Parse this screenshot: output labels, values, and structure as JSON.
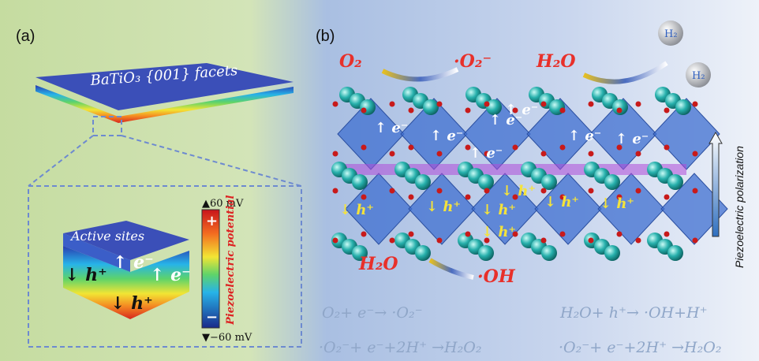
{
  "panel_a": {
    "label": "(a)",
    "slab_label": "BaTiO₃ {001} facets",
    "block_label": "Active sites",
    "charges": [
      "↓ h⁺",
      "↑ e⁻",
      "↑ e⁻",
      "↓ h⁺"
    ],
    "colorbar": {
      "top": "▲60 mV",
      "bottom": "▼−60 mV",
      "plus": "+",
      "minus": "−",
      "title": "Piezoelectric potential"
    }
  },
  "panel_b": {
    "label": "(b)",
    "oxygen": "O₂",
    "superoxide": "·O₂⁻",
    "water_top": "H₂O",
    "hydrogen": [
      "H₂",
      "H₂"
    ],
    "electrons": [
      "↑ e⁻",
      "↑ e⁻",
      "↑ e⁻",
      "↑ e⁻",
      "↑ e⁻",
      "↑ e⁻",
      "↑ e⁻"
    ],
    "holes": [
      "↓ h⁺",
      "↓ h⁺",
      "↓ h⁺",
      "↓ h⁺",
      "↓ h⁺",
      "↓ h⁺",
      "↓ h⁺"
    ],
    "water_bottom": "H₂O",
    "hydroxyl": "·OH",
    "polarization": "Piezoelectric polarization",
    "equations": [
      "O₂+ e⁻→ ·O₂⁻",
      "H₂O+ h⁺→ ·OH+H⁺",
      "·O₂⁻+ e⁻+2H⁺ →H₂O₂",
      "·O₂⁻+ e⁻+2H⁺ →H₂O₂"
    ]
  }
}
